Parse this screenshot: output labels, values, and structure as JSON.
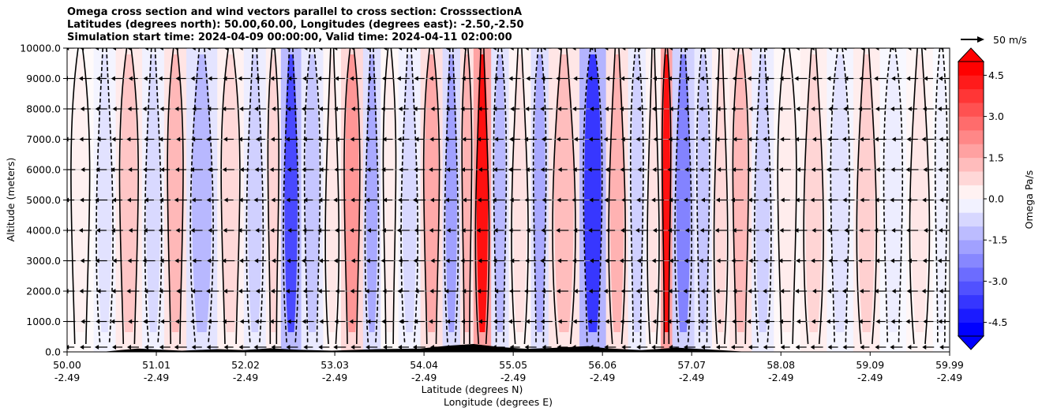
{
  "chart_data": {
    "type": "contour",
    "title_lines": [
      "Omega cross section and wind vectors parallel to cross section: CrosssectionA",
      "Latitudes (degrees north): 50.00,60.00, Longitudes (degrees east): -2.50,-2.50",
      "Simulation start time: 2024-04-09 00:00:00, Valid time: 2024-04-11 02:00:00"
    ],
    "ylabel": "Altitude (meters)",
    "xlabel_lat": "Latitude (degrees N)",
    "xlabel_lon": "Longitude (degrees E)",
    "ylim": [
      0,
      10000
    ],
    "xlim": [
      50.0,
      59.99
    ],
    "y_ticks": [
      "0.0",
      "1000.0",
      "2000.0",
      "3000.0",
      "4000.0",
      "5000.0",
      "6000.0",
      "7000.0",
      "8000.0",
      "9000.0",
      "10000.0"
    ],
    "y_tick_values": [
      0,
      1000,
      2000,
      3000,
      4000,
      5000,
      6000,
      7000,
      8000,
      9000,
      10000
    ],
    "x_tick_lat": [
      "50.00",
      "51.01",
      "52.02",
      "53.03",
      "54.04",
      "55.05",
      "56.06",
      "57.07",
      "58.08",
      "59.09",
      "59.99"
    ],
    "x_tick_lat_values": [
      50.0,
      51.01,
      52.02,
      53.03,
      54.04,
      55.05,
      56.06,
      57.07,
      58.08,
      59.09,
      59.99
    ],
    "x_tick_lon": [
      "-2.49",
      "-2.49",
      "-2.49",
      "-2.49",
      "-2.49",
      "-2.49",
      "-2.49",
      "-2.49",
      "-2.49",
      "-2.49",
      "-2.49"
    ],
    "colorbar_label": "Omega Pa/s",
    "colorbar_ticks": [
      "4.5",
      "3.0",
      "1.5",
      "0.0",
      "-1.5",
      "-3.0",
      "-4.5"
    ],
    "colorbar_tick_values": [
      4.5,
      3.0,
      1.5,
      0.0,
      -1.5,
      -3.0,
      -4.5
    ],
    "colorbar_range": [
      -5,
      5
    ],
    "colorbar_extend": "both",
    "quiver_key": "50 m/s",
    "omega_bands": [
      {
        "lat": 50.0,
        "omega": 0.3
      },
      {
        "lat": 50.3,
        "omega": -0.6
      },
      {
        "lat": 50.55,
        "omega": 1.2
      },
      {
        "lat": 50.85,
        "omega": -0.8
      },
      {
        "lat": 51.1,
        "omega": 1.5
      },
      {
        "lat": 51.35,
        "omega": -1.5
      },
      {
        "lat": 51.7,
        "omega": 0.8
      },
      {
        "lat": 52.0,
        "omega": -1.0
      },
      {
        "lat": 52.25,
        "omega": 0.9
      },
      {
        "lat": 52.42,
        "omega": -3.8
      },
      {
        "lat": 52.65,
        "omega": -1.2
      },
      {
        "lat": 52.9,
        "omega": 0.5
      },
      {
        "lat": 53.1,
        "omega": 2.2
      },
      {
        "lat": 53.35,
        "omega": -1.8
      },
      {
        "lat": 53.55,
        "omega": 0.4
      },
      {
        "lat": 53.75,
        "omega": -0.8
      },
      {
        "lat": 54.0,
        "omega": 1.8
      },
      {
        "lat": 54.25,
        "omega": -2.0
      },
      {
        "lat": 54.45,
        "omega": 1.6
      },
      {
        "lat": 54.6,
        "omega": 5.2
      },
      {
        "lat": 54.8,
        "omega": -1.5
      },
      {
        "lat": 55.0,
        "omega": 0.6
      },
      {
        "lat": 55.25,
        "omega": -1.8
      },
      {
        "lat": 55.45,
        "omega": 1.4
      },
      {
        "lat": 55.8,
        "omega": -4.2
      },
      {
        "lat": 56.1,
        "omega": 1.6
      },
      {
        "lat": 56.35,
        "omega": -1.0
      },
      {
        "lat": 56.55,
        "omega": 0.6
      },
      {
        "lat": 56.72,
        "omega": 5.2
      },
      {
        "lat": 56.85,
        "omega": -2.6
      },
      {
        "lat": 57.1,
        "omega": -1.2
      },
      {
        "lat": 57.3,
        "omega": 0.8
      },
      {
        "lat": 57.5,
        "omega": 1.5
      },
      {
        "lat": 57.75,
        "omega": -1.0
      },
      {
        "lat": 58.0,
        "omega": 0.4
      },
      {
        "lat": 58.3,
        "omega": 0.9
      },
      {
        "lat": 58.6,
        "omega": -0.6
      },
      {
        "lat": 58.9,
        "omega": 1.0
      },
      {
        "lat": 59.2,
        "omega": -0.4
      },
      {
        "lat": 59.5,
        "omega": 0.5
      },
      {
        "lat": 59.8,
        "omega": -0.3
      }
    ]
  }
}
